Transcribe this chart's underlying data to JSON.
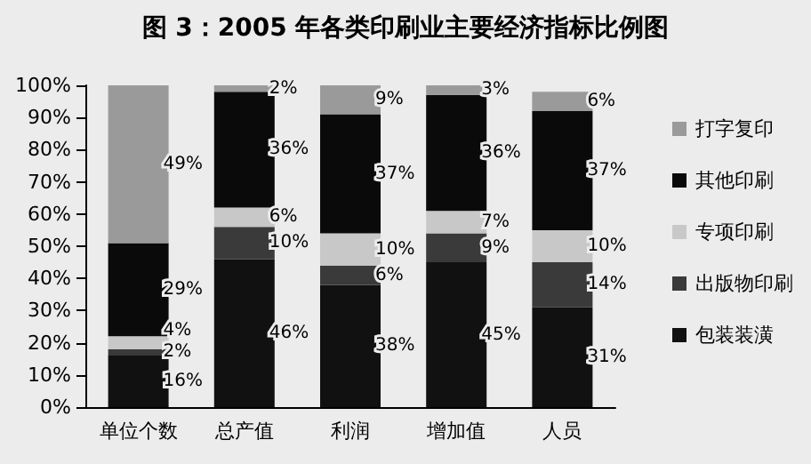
{
  "chart_data": {
    "type": "bar",
    "stacked": true,
    "title": "图 3：2005 年各类印刷业主要经济指标比例图",
    "categories": [
      "单位个数",
      "总产值",
      "利润",
      "增加值",
      "人员"
    ],
    "series": [
      {
        "name": "包装装潢",
        "color": "#111111",
        "values": [
          16,
          46,
          38,
          45,
          31
        ],
        "value_labels": [
          "16%",
          "46%",
          "38%",
          "45%",
          "31%"
        ]
      },
      {
        "name": "出版物印刷",
        "color": "#3a3a3a",
        "values": [
          2,
          10,
          6,
          9,
          14
        ],
        "value_labels": [
          "2%",
          "10%",
          "6%",
          "9%",
          "14%"
        ]
      },
      {
        "name": "专项印刷",
        "color": "#c8c8c8",
        "values": [
          4,
          6,
          10,
          7,
          10
        ],
        "value_labels": [
          "4%",
          "6%",
          "10%",
          "7%",
          "10%"
        ]
      },
      {
        "name": "其他印刷",
        "color": "#0a0a0a",
        "values": [
          29,
          36,
          37,
          36,
          37
        ],
        "value_labels": [
          "29%",
          "36%",
          "37%",
          "36%",
          "37%"
        ]
      },
      {
        "name": "打字复印",
        "color": "#9a9a9a",
        "values": [
          49,
          2,
          9,
          3,
          6
        ],
        "value_labels": [
          "49%",
          "2%",
          "9%",
          "3%",
          "6%"
        ]
      }
    ],
    "ylim": [
      0,
      100
    ],
    "yticks": [
      {
        "value": 0,
        "label": "0%"
      },
      {
        "value": 10,
        "label": "10%"
      },
      {
        "value": 20,
        "label": "20%"
      },
      {
        "value": 30,
        "label": "30%"
      },
      {
        "value": 40,
        "label": "40%"
      },
      {
        "value": 50,
        "label": "50%"
      },
      {
        "value": 60,
        "label": "60%"
      },
      {
        "value": 70,
        "label": "70%"
      },
      {
        "value": 80,
        "label": "80%"
      },
      {
        "value": 90,
        "label": "90%"
      },
      {
        "value": 100,
        "label": "100%"
      }
    ],
    "grid": false,
    "legend": "right"
  }
}
